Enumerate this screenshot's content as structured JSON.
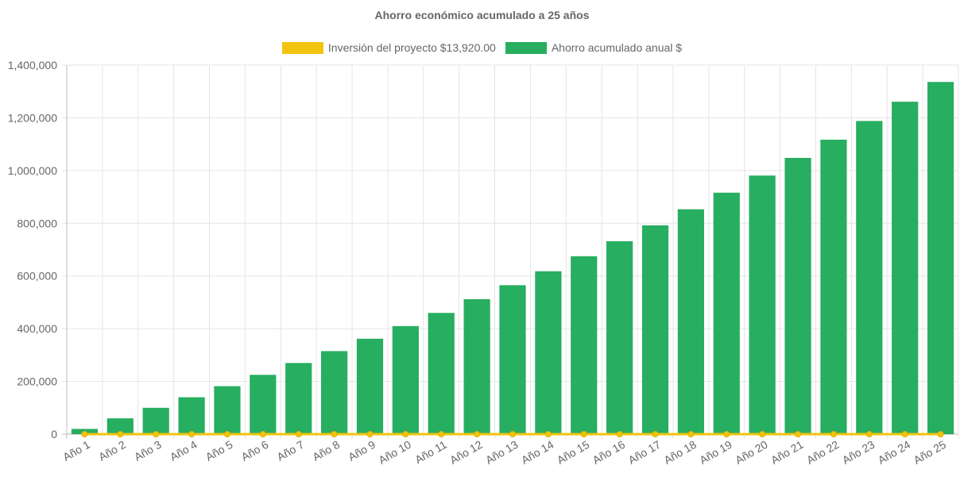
{
  "chart_data": {
    "type": "bar",
    "title": "Ahorro económico acumulado a 25 años",
    "categories": [
      "Año 1",
      "Año 2",
      "Año 3",
      "Año 4",
      "Año 5",
      "Año 6",
      "Año 7",
      "Año 8",
      "Año 9",
      "Año 10",
      "Año 11",
      "Año 12",
      "Año 13",
      "Año 14",
      "Año 15",
      "Año 16",
      "Año 17",
      "Año 18",
      "Año 19",
      "Año 20",
      "Año 21",
      "Año 22",
      "Año 23",
      "Año 24",
      "Año 25"
    ],
    "series": [
      {
        "name": "Inversión del proyecto $13,920.00",
        "type": "line",
        "color": "#f1c40f",
        "values": [
          0,
          0,
          0,
          0,
          0,
          0,
          0,
          0,
          0,
          0,
          0,
          0,
          0,
          0,
          0,
          0,
          0,
          0,
          0,
          0,
          0,
          0,
          0,
          0,
          0
        ]
      },
      {
        "name": "Ahorro acumulado anual $",
        "type": "bar",
        "color": "#27ae60",
        "values": [
          20000,
          60000,
          100000,
          140000,
          182000,
          225000,
          270000,
          315000,
          362000,
          410000,
          460000,
          512000,
          565000,
          618000,
          675000,
          732000,
          792000,
          853000,
          916000,
          981000,
          1048000,
          1117000,
          1188000,
          1261000,
          1336000
        ]
      }
    ],
    "yticks": [
      "0",
      "200,000",
      "400,000",
      "600,000",
      "800,000",
      "1,000,000",
      "1,200,000",
      "1,400,000"
    ],
    "ylim": [
      0,
      1400000
    ],
    "grid": true,
    "legend_position": "top"
  }
}
